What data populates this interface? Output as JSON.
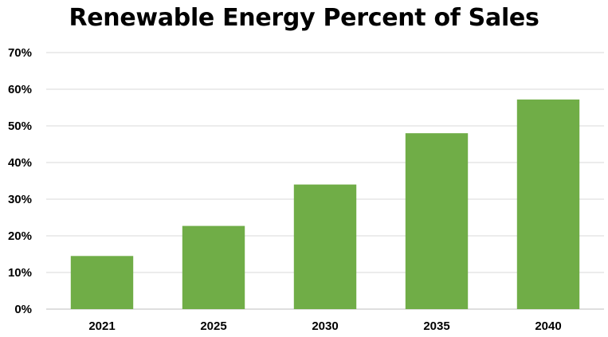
{
  "chart_data": {
    "type": "bar",
    "title": "Renewable Energy Percent of Sales",
    "xlabel": "",
    "ylabel": "",
    "categories": [
      "2021",
      "2025",
      "2030",
      "2035",
      "2040"
    ],
    "values": [
      14.5,
      22.7,
      34,
      48,
      57.2
    ],
    "ylim": [
      0,
      70
    ],
    "yticks": [
      "0%",
      "10%",
      "20%",
      "30%",
      "40%",
      "50%",
      "60%",
      "70%"
    ],
    "grid": true,
    "legend": "none",
    "colors": {
      "bar": "#70AD47",
      "grid": "#D9D9D9"
    }
  }
}
